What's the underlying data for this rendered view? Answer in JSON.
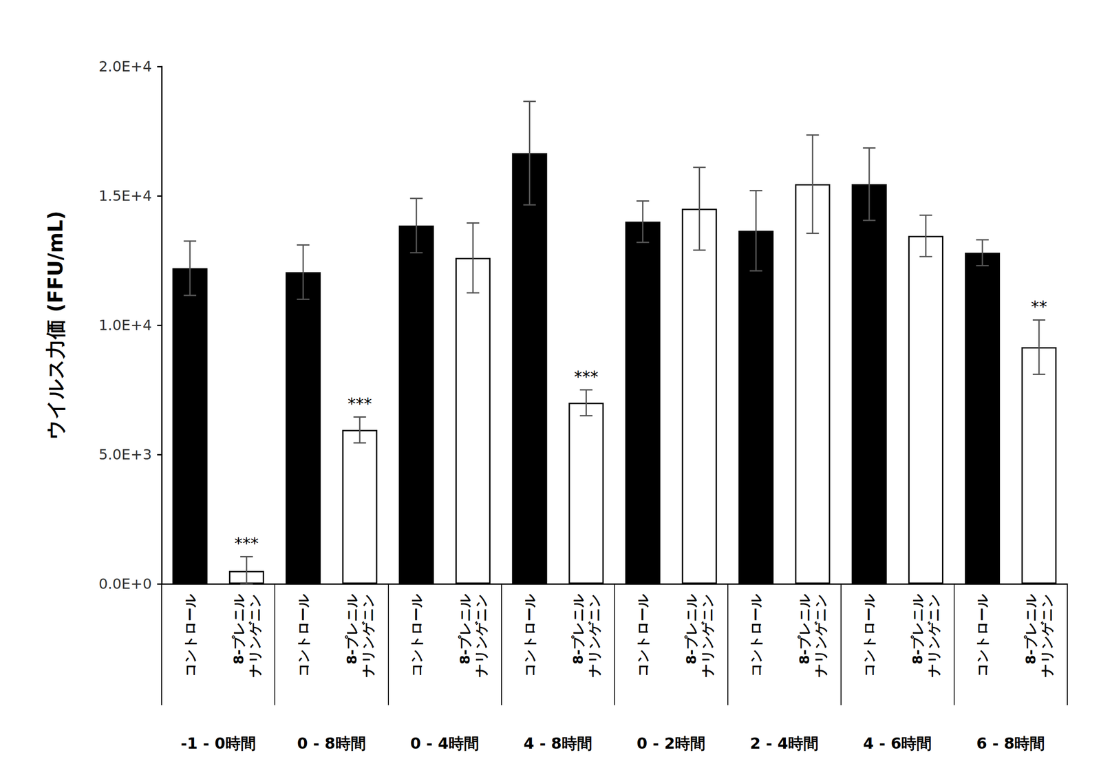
{
  "chart_data": {
    "type": "bar",
    "y_label": "ウイルス力価 (FFU/mL)",
    "categories": [
      "コントロール",
      "8-プレニル\nナリンゲニン",
      "コントロール",
      "8-プレニル\nナリンゲニン",
      "コントロール",
      "8-プレニル\nナリンゲニン",
      "コントロール",
      "8-プレニル\nナリンゲニン",
      "コントロール",
      "8-プレニル\nナリンゲニン",
      "コントロール",
      "8-プレニル\nナリンゲニン",
      "コントロール",
      "8-プレニル\nナリンゲニン",
      "コントロール",
      "8-プレニル\nナリンゲニン"
    ],
    "groups": [
      "-1 - 0時間",
      "0 - 8時間",
      "0 - 4時間",
      "4 - 8時間",
      "0 - 2時間",
      "2 - 4時間",
      "4 - 6時間",
      "6 - 8時間"
    ],
    "values": [
      12200,
      500,
      12050,
      5950,
      13850,
      12600,
      16650,
      7000,
      14000,
      14500,
      13650,
      15450,
      15450,
      13450,
      12800,
      9150
    ],
    "errors": [
      1050,
      550,
      1050,
      500,
      1050,
      1350,
      2000,
      500,
      800,
      1600,
      1550,
      1900,
      1400,
      800,
      500,
      1050
    ],
    "significance": [
      null,
      "***",
      null,
      "***",
      null,
      null,
      null,
      "***",
      null,
      null,
      null,
      null,
      null,
      null,
      null,
      "**"
    ],
    "colors": [
      "#000000",
      "#ffffff",
      "#000000",
      "#ffffff",
      "#000000",
      "#ffffff",
      "#000000",
      "#ffffff",
      "#000000",
      "#ffffff",
      "#000000",
      "#ffffff",
      "#000000",
      "#ffffff",
      "#000000",
      "#ffffff"
    ],
    "ylim": [
      0,
      20000
    ],
    "yticks": [
      {
        "value": 0,
        "label": "0.0E+0"
      },
      {
        "value": 5000,
        "label": "5.0E+3"
      },
      {
        "value": 10000,
        "label": "1.0E+4"
      },
      {
        "value": 15000,
        "label": "1.5E+4"
      },
      {
        "value": 20000,
        "label": "2.0E+4"
      }
    ],
    "grid": false
  }
}
